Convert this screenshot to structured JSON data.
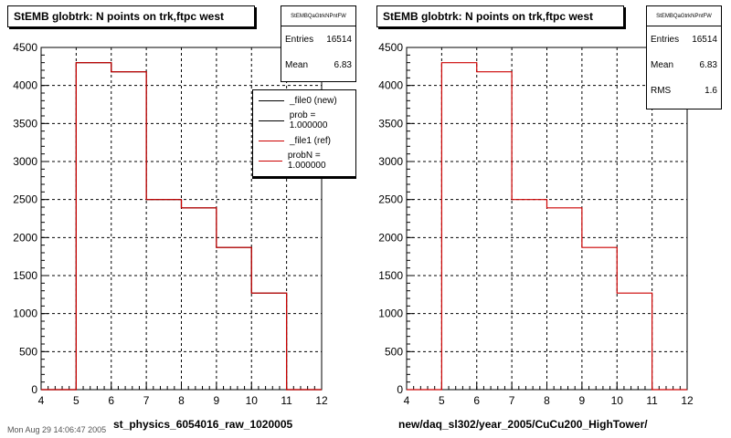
{
  "chart_data": [
    {
      "type": "bar",
      "title": "StEMB globtrk: N points on trk,ftpc west",
      "xlabel": "st_physics_6054016_raw_1020005",
      "xlim": [
        4,
        12
      ],
      "ylim": [
        0,
        4500
      ],
      "x_ticks": [
        4,
        5,
        6,
        7,
        8,
        9,
        10,
        11,
        12
      ],
      "y_ticks": [
        0,
        500,
        1000,
        1500,
        2000,
        2500,
        3000,
        3500,
        4000,
        4500
      ],
      "grid": true,
      "bin_edges": [
        4,
        5,
        6,
        7,
        8,
        9,
        10,
        11,
        12
      ],
      "series": [
        {
          "name": "_file0 (new)",
          "color": "#000000",
          "values": [
            0,
            4300,
            4180,
            2500,
            2390,
            1870,
            1270,
            0
          ]
        },
        {
          "name": "_file1 (ref)",
          "color": "#cc0000",
          "values": [
            0,
            4300,
            4180,
            2500,
            2390,
            1870,
            1270,
            0
          ]
        }
      ],
      "stats": {
        "name": "StEMBQaGtrkNPntFW",
        "entries_label": "Entries",
        "entries": "16514",
        "mean_label": "Mean",
        "mean": "6.83"
      },
      "legend": [
        {
          "label": "_file0 (new)",
          "color": "#000000"
        },
        {
          "label": "prob = 1.000000",
          "color": "#000000"
        },
        {
          "label": "_file1 (ref)",
          "color": "#cc0000"
        },
        {
          "label": "probN = 1.000000",
          "color": "#cc0000"
        }
      ]
    },
    {
      "type": "bar",
      "title": "StEMB globtrk: N points on trk,ftpc west",
      "xlabel": "new/daq_sl302/year_2005/CuCu200_HighTower/",
      "xlim": [
        4,
        12
      ],
      "ylim": [
        0,
        4500
      ],
      "x_ticks": [
        4,
        5,
        6,
        7,
        8,
        9,
        10,
        11,
        12
      ],
      "y_ticks": [
        0,
        500,
        1000,
        1500,
        2000,
        2500,
        3000,
        3500,
        4000,
        4500
      ],
      "grid": true,
      "bin_edges": [
        4,
        5,
        6,
        7,
        8,
        9,
        10,
        11,
        12
      ],
      "series": [
        {
          "name": "",
          "color": "#cc0000",
          "values": [
            0,
            4300,
            4180,
            2500,
            2390,
            1870,
            1270,
            0
          ]
        }
      ],
      "stats": {
        "name": "StEMBQaGtrkNPntFW",
        "entries_label": "Entries",
        "entries": "16514",
        "mean_label": "Mean",
        "mean": "6.83",
        "rms_label": "RMS",
        "rms": "1.6"
      }
    }
  ],
  "footer": "Mon Aug 29 14:06:47 2005"
}
